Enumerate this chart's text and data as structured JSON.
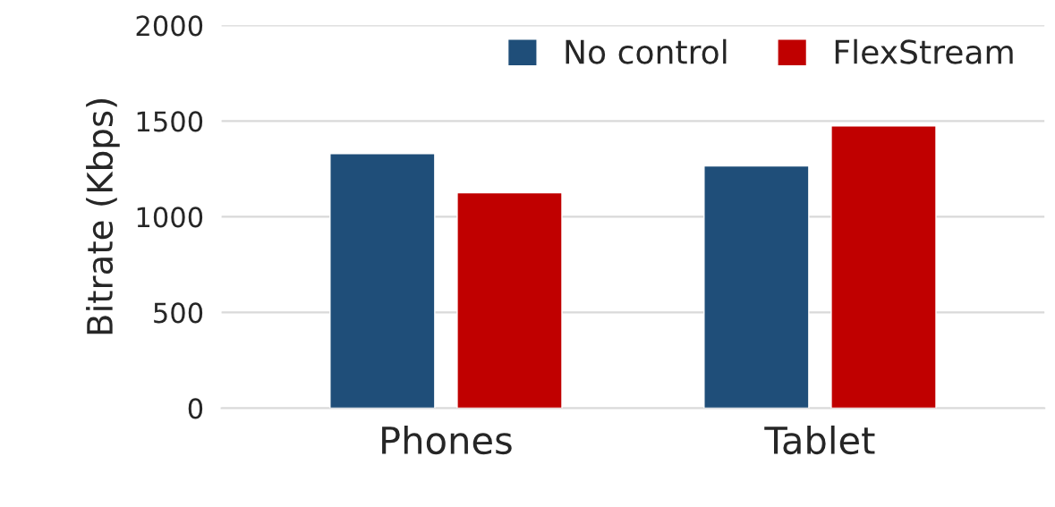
{
  "chart_data": {
    "type": "bar",
    "ylabel": "Bitrate (Kbps)",
    "categories": [
      "Phones",
      "Tablet"
    ],
    "series": [
      {
        "name": "No control",
        "color": "#1f4e79",
        "values": [
          1330,
          1265
        ]
      },
      {
        "name": "FlexStream",
        "color": "#c00000",
        "values": [
          1125,
          1475
        ]
      }
    ],
    "ylim": [
      0,
      2000
    ],
    "yticks": [
      0,
      500,
      1000,
      1500,
      2000
    ],
    "grid": "y",
    "legend": "top right"
  }
}
